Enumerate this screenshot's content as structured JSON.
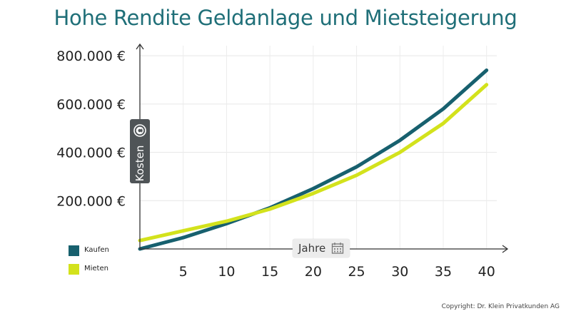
{
  "chart_data": {
    "type": "line",
    "title": "Hohe Rendite Geldanlage und Mietsteigerung",
    "xlabel": "Jahre",
    "ylabel": "Kosten",
    "x": [
      0,
      5,
      10,
      15,
      20,
      25,
      30,
      35,
      40
    ],
    "x_ticks": [
      "5",
      "10",
      "15",
      "20",
      "25",
      "30",
      "35",
      "40"
    ],
    "y_ticks": [
      "200.000 €",
      "400.000 €",
      "600.000 €",
      "800.000 €"
    ],
    "y_tick_values": [
      200000,
      400000,
      600000,
      800000
    ],
    "xlim": [
      0,
      42
    ],
    "ylim": [
      0,
      830000
    ],
    "grid": true,
    "legend_position": "bottom-left",
    "series": [
      {
        "name": "Kaufen",
        "color": "#17606e",
        "values": [
          0,
          47000,
          105000,
          170000,
          250000,
          340000,
          450000,
          580000,
          740000
        ]
      },
      {
        "name": "Mieten",
        "color": "#d3e21c",
        "values": [
          35000,
          75000,
          115000,
          165000,
          230000,
          305000,
          400000,
          520000,
          680000
        ]
      }
    ]
  },
  "icons": {
    "ylabel_icon": "coin-icon",
    "xlabel_icon": "calendar-icon"
  },
  "copyright": "Copyright: Dr. Klein Privatkunden AG"
}
